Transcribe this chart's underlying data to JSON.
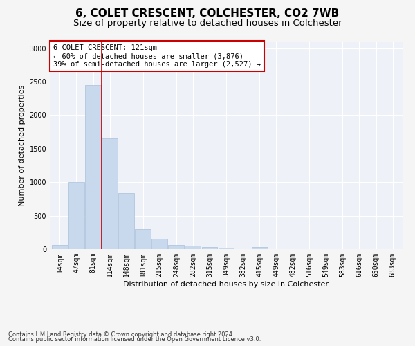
{
  "title": "6, COLET CRESCENT, COLCHESTER, CO2 7WB",
  "subtitle": "Size of property relative to detached houses in Colchester",
  "xlabel": "Distribution of detached houses by size in Colchester",
  "ylabel": "Number of detached properties",
  "footnote1": "Contains HM Land Registry data © Crown copyright and database right 2024.",
  "footnote2": "Contains public sector information licensed under the Open Government Licence v3.0.",
  "annotation_title": "6 COLET CRESCENT: 121sqm",
  "annotation_line1": "← 60% of detached houses are smaller (3,876)",
  "annotation_line2": "39% of semi-detached houses are larger (2,527) →",
  "property_size": 121,
  "categories": [
    "14sqm",
    "47sqm",
    "81sqm",
    "114sqm",
    "148sqm",
    "181sqm",
    "215sqm",
    "248sqm",
    "282sqm",
    "315sqm",
    "349sqm",
    "382sqm",
    "415sqm",
    "449sqm",
    "482sqm",
    "516sqm",
    "549sqm",
    "583sqm",
    "616sqm",
    "650sqm",
    "683sqm"
  ],
  "values": [
    60,
    1000,
    2450,
    1650,
    840,
    300,
    150,
    60,
    50,
    30,
    20,
    0,
    30,
    0,
    0,
    0,
    0,
    0,
    0,
    0,
    0
  ],
  "bar_color": "#c8d9ed",
  "bar_edge_color": "#a8bfd8",
  "vline_color": "#cc0000",
  "annotation_box_color": "#ffffff",
  "annotation_box_edge": "#cc0000",
  "ylim": [
    0,
    3100
  ],
  "background_color": "#eef2f8",
  "grid_color": "#ffffff",
  "fig_background": "#f5f5f5",
  "title_fontsize": 11,
  "subtitle_fontsize": 9.5,
  "axis_label_fontsize": 8,
  "tick_fontsize": 7,
  "annotation_fontsize": 7.5,
  "footnote_fontsize": 6
}
